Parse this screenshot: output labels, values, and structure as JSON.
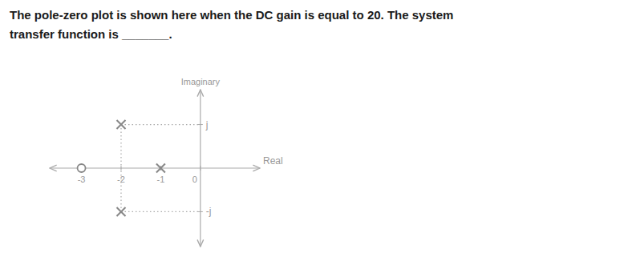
{
  "chart_data": {
    "type": "scatter",
    "title": [
      "The pole-zero plot is shown here when the DC gain is equal to 20. The system",
      "transfer function is _______."
    ],
    "xlabel": "Real",
    "ylabel": "Imaginary",
    "series": [
      {
        "marker": "o",
        "color": "#888888",
        "x": [
          -3
        ],
        "values": [
          0
        ]
      },
      {
        "marker": "x",
        "color": "#888888",
        "x": [
          -1,
          -2,
          -2
        ],
        "values": [
          0,
          1,
          -1
        ]
      }
    ],
    "xlim": [
      -3.8,
      1.5
    ],
    "ylim": [
      -1.8,
      1.8
    ],
    "xticks": [
      -3,
      -2,
      -1,
      0
    ],
    "yticks": [
      {
        "value": 1,
        "label": "j"
      },
      {
        "value": -1,
        "label": "-j"
      }
    ],
    "grid": false
  }
}
